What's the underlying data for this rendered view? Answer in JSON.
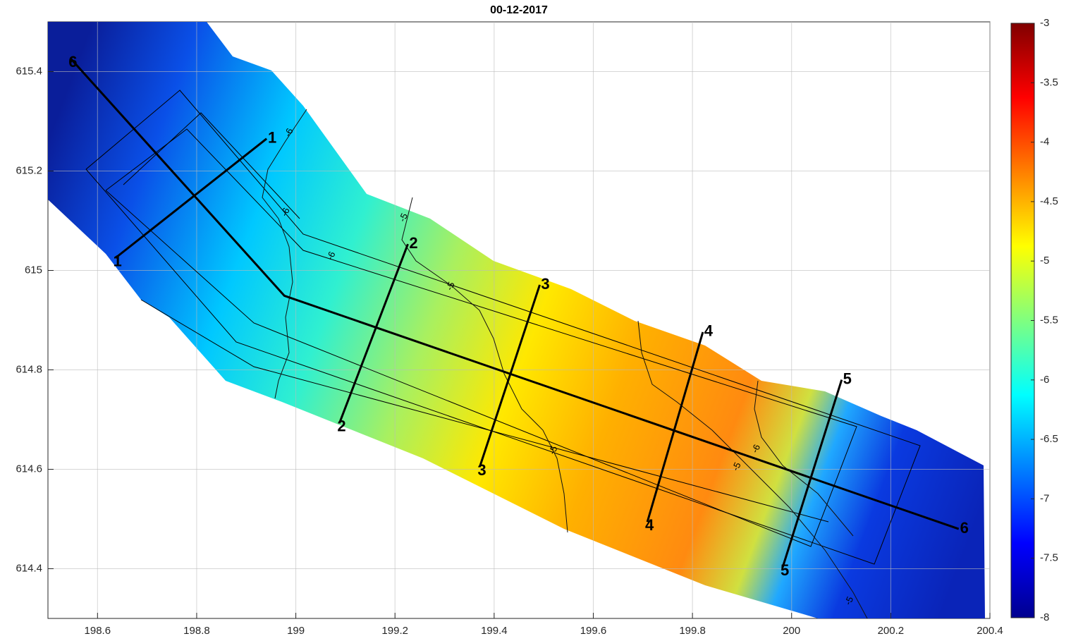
{
  "chart_data": {
    "type": "bathymetry",
    "title": "00-12-2017",
    "xlim": [
      198.5,
      200.4
    ],
    "ylim": [
      614.3,
      615.5
    ],
    "xticks": [
      198.6,
      198.8,
      199,
      199.2,
      199.4,
      199.6,
      199.8,
      200,
      200.2,
      200.4
    ],
    "yticks": [
      614.4,
      614.6,
      614.8,
      615,
      615.2,
      615.4
    ],
    "grid": true,
    "line_color": "#000000",
    "colorbar": {
      "clim": [
        -8,
        -3
      ],
      "ticks": [
        -8,
        -7.5,
        -7,
        -6.5,
        -6,
        -5.5,
        -5,
        -4.5,
        -4,
        -3.5,
        -3
      ]
    },
    "profiles": [
      {
        "name": "1",
        "x": [
          198.636,
          198.941
        ],
        "y": [
          615.025,
          615.265
        ]
      },
      {
        "name": "2",
        "x": [
          199.088,
          199.226
        ],
        "y": [
          614.693,
          615.053
        ]
      },
      {
        "name": "3",
        "x": [
          199.371,
          199.492
        ],
        "y": [
          614.605,
          614.971
        ]
      },
      {
        "name": "4",
        "x": [
          199.709,
          199.821
        ],
        "y": [
          614.494,
          614.876
        ]
      },
      {
        "name": "5",
        "x": [
          199.982,
          200.101
        ],
        "y": [
          614.403,
          614.78
        ]
      },
      {
        "name": "6",
        "x": [
          198.546,
          198.977,
          200.337
        ],
        "y": [
          615.426,
          614.949,
          614.48
        ]
      }
    ],
    "contour_labels": [
      {
        "level": -6,
        "x": 198.987,
        "y": 615.277
      },
      {
        "level": -6,
        "x": 198.98,
        "y": 615.117
      },
      {
        "level": -6,
        "x": 199.072,
        "y": 615.029
      },
      {
        "level": -5,
        "x": 199.218,
        "y": 615.106
      },
      {
        "level": -5,
        "x": 199.313,
        "y": 614.968
      },
      {
        "level": -5,
        "x": 199.52,
        "y": 614.638
      },
      {
        "level": -5,
        "x": 199.89,
        "y": 614.605
      },
      {
        "level": -6,
        "x": 199.929,
        "y": 614.641
      },
      {
        "level": -5,
        "x": 200.117,
        "y": 614.335
      }
    ]
  }
}
